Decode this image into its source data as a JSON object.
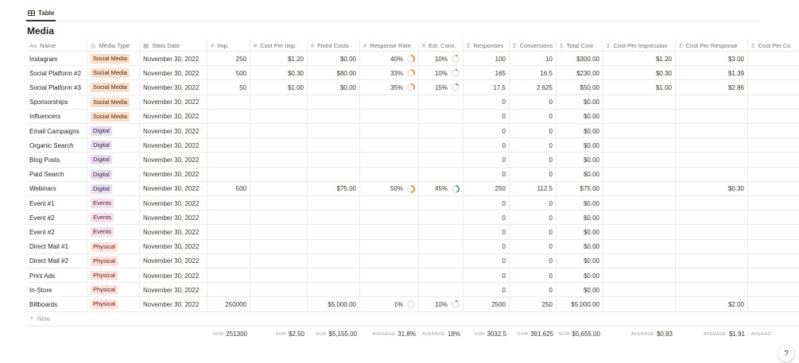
{
  "tab": {
    "label": "Table",
    "icon": "table-icon"
  },
  "database_title": "Media",
  "columns": [
    {
      "label": "Name",
      "icon": "Aa"
    },
    {
      "label": "Media Type",
      "icon": "◎"
    },
    {
      "label": "Stats Date",
      "icon": "▦"
    },
    {
      "label": "Imp.",
      "icon": "#"
    },
    {
      "label": "Cost Per Imp.",
      "icon": "#"
    },
    {
      "label": "Fixed Costs",
      "icon": "#"
    },
    {
      "label": "Response Rate",
      "icon": "#"
    },
    {
      "label": "Est. Conv.",
      "icon": "#"
    },
    {
      "label": "Responses",
      "icon": "Σ"
    },
    {
      "label": "Conversions",
      "icon": "Σ"
    },
    {
      "label": "Total Cost",
      "icon": "Σ"
    },
    {
      "label": "Cost Per Impression",
      "icon": "Σ"
    },
    {
      "label": "Cost Per Response",
      "icon": "Σ"
    },
    {
      "label": "Cost Per Co",
      "icon": "Σ"
    }
  ],
  "tag_colors": {
    "Social Media": {
      "bg": "#fadec9",
      "fg": "#49290e"
    },
    "Digital": {
      "bg": "#e8deee",
      "fg": "#412454"
    },
    "Events": {
      "bg": "#f5e0e9",
      "fg": "#4c2337"
    },
    "Physical": {
      "bg": "#ffe2dd",
      "fg": "#5d1715"
    }
  },
  "ring_colors": {
    "response": "#d9730d",
    "conversion": "#448361",
    "track": "#e3e2e0"
  },
  "rows": [
    {
      "name": "Instagram",
      "media_type": "Social Media",
      "stats_date": "November 30, 2022",
      "imp": "250",
      "cost_per_imp": "$1.20",
      "fixed_costs": "$0.00",
      "response_rate": "40%",
      "response_rate_value": 0.4,
      "est_conv": "10%",
      "est_conv_value": 0.1,
      "responses": "100",
      "conversions": "10",
      "total_cost": "$300.00",
      "cost_per_impression": "$1.20",
      "cost_per_response": "$3.00",
      "cost_per_conversion": ""
    },
    {
      "name": "Social Platform #2",
      "media_type": "Social Media",
      "stats_date": "November 30, 2022",
      "imp": "500",
      "cost_per_imp": "$0.30",
      "fixed_costs": "$80.00",
      "response_rate": "33%",
      "response_rate_value": 0.33,
      "est_conv": "10%",
      "est_conv_value": 0.1,
      "responses": "165",
      "conversions": "16.5",
      "total_cost": "$230.00",
      "cost_per_impression": "$0.30",
      "cost_per_response": "$1.39",
      "cost_per_conversion": ""
    },
    {
      "name": "Social Platform #3",
      "media_type": "Social Media",
      "stats_date": "November 30, 2022",
      "imp": "50",
      "cost_per_imp": "$1.00",
      "fixed_costs": "$0.00",
      "response_rate": "35%",
      "response_rate_value": 0.35,
      "est_conv": "15%",
      "est_conv_value": 0.15,
      "responses": "17.5",
      "conversions": "2.625",
      "total_cost": "$50.00",
      "cost_per_impression": "$1.00",
      "cost_per_response": "$2.86",
      "cost_per_conversion": ""
    },
    {
      "name": "Sponsorships",
      "media_type": "Social Media",
      "stats_date": "November 30, 2022",
      "imp": "",
      "cost_per_imp": "",
      "fixed_costs": "",
      "response_rate": "",
      "response_rate_value": null,
      "est_conv": "",
      "est_conv_value": null,
      "responses": "0",
      "conversions": "0",
      "total_cost": "$0.00",
      "cost_per_impression": "",
      "cost_per_response": "",
      "cost_per_conversion": ""
    },
    {
      "name": "Influencers",
      "media_type": "Social Media",
      "stats_date": "November 30, 2022",
      "imp": "",
      "cost_per_imp": "",
      "fixed_costs": "",
      "response_rate": "",
      "response_rate_value": null,
      "est_conv": "",
      "est_conv_value": null,
      "responses": "0",
      "conversions": "0",
      "total_cost": "$0.00",
      "cost_per_impression": "",
      "cost_per_response": "",
      "cost_per_conversion": ""
    },
    {
      "name": "Email Campaigns",
      "media_type": "Digital",
      "stats_date": "November 30, 2022",
      "imp": "",
      "cost_per_imp": "",
      "fixed_costs": "",
      "response_rate": "",
      "response_rate_value": null,
      "est_conv": "",
      "est_conv_value": null,
      "responses": "0",
      "conversions": "0",
      "total_cost": "$0.00",
      "cost_per_impression": "",
      "cost_per_response": "",
      "cost_per_conversion": ""
    },
    {
      "name": "Organic Search",
      "media_type": "Digital",
      "stats_date": "November 30, 2022",
      "imp": "",
      "cost_per_imp": "",
      "fixed_costs": "",
      "response_rate": "",
      "response_rate_value": null,
      "est_conv": "",
      "est_conv_value": null,
      "responses": "0",
      "conversions": "0",
      "total_cost": "$0.00",
      "cost_per_impression": "",
      "cost_per_response": "",
      "cost_per_conversion": ""
    },
    {
      "name": "Blog Posts",
      "media_type": "Digital",
      "stats_date": "November 30, 2022",
      "imp": "",
      "cost_per_imp": "",
      "fixed_costs": "",
      "response_rate": "",
      "response_rate_value": null,
      "est_conv": "",
      "est_conv_value": null,
      "responses": "0",
      "conversions": "0",
      "total_cost": "$0.00",
      "cost_per_impression": "",
      "cost_per_response": "",
      "cost_per_conversion": ""
    },
    {
      "name": "Paid Search",
      "media_type": "Digital",
      "stats_date": "November 30, 2022",
      "imp": "",
      "cost_per_imp": "",
      "fixed_costs": "",
      "response_rate": "",
      "response_rate_value": null,
      "est_conv": "",
      "est_conv_value": null,
      "responses": "0",
      "conversions": "0",
      "total_cost": "$0.00",
      "cost_per_impression": "",
      "cost_per_response": "",
      "cost_per_conversion": ""
    },
    {
      "name": "Webinars",
      "media_type": "Digital",
      "stats_date": "November 30, 2022",
      "imp": "500",
      "cost_per_imp": "",
      "fixed_costs": "$75.00",
      "response_rate": "50%",
      "response_rate_value": 0.5,
      "est_conv": "45%",
      "est_conv_value": 0.45,
      "responses": "250",
      "conversions": "112.5",
      "total_cost": "$75.00",
      "cost_per_impression": "",
      "cost_per_response": "$0.30",
      "cost_per_conversion": ""
    },
    {
      "name": "Event #1",
      "media_type": "Events",
      "stats_date": "November 30, 2022",
      "imp": "",
      "cost_per_imp": "",
      "fixed_costs": "",
      "response_rate": "",
      "response_rate_value": null,
      "est_conv": "",
      "est_conv_value": null,
      "responses": "0",
      "conversions": "0",
      "total_cost": "$0.00",
      "cost_per_impression": "",
      "cost_per_response": "",
      "cost_per_conversion": ""
    },
    {
      "name": "Event #2",
      "media_type": "Events",
      "stats_date": "November 30, 2022",
      "imp": "",
      "cost_per_imp": "",
      "fixed_costs": "",
      "response_rate": "",
      "response_rate_value": null,
      "est_conv": "",
      "est_conv_value": null,
      "responses": "0",
      "conversions": "0",
      "total_cost": "$0.00",
      "cost_per_impression": "",
      "cost_per_response": "",
      "cost_per_conversion": ""
    },
    {
      "name": "Event #2",
      "media_type": "Events",
      "stats_date": "November 30, 2022",
      "imp": "",
      "cost_per_imp": "",
      "fixed_costs": "",
      "response_rate": "",
      "response_rate_value": null,
      "est_conv": "",
      "est_conv_value": null,
      "responses": "0",
      "conversions": "0",
      "total_cost": "$0.00",
      "cost_per_impression": "",
      "cost_per_response": "",
      "cost_per_conversion": ""
    },
    {
      "name": "Direct Mail #1",
      "media_type": "Physical",
      "stats_date": "November 30, 2022",
      "imp": "",
      "cost_per_imp": "",
      "fixed_costs": "",
      "response_rate": "",
      "response_rate_value": null,
      "est_conv": "",
      "est_conv_value": null,
      "responses": "0",
      "conversions": "0",
      "total_cost": "$0.00",
      "cost_per_impression": "",
      "cost_per_response": "",
      "cost_per_conversion": ""
    },
    {
      "name": "Direct Mail #2",
      "media_type": "Physical",
      "stats_date": "November 30, 2022",
      "imp": "",
      "cost_per_imp": "",
      "fixed_costs": "",
      "response_rate": "",
      "response_rate_value": null,
      "est_conv": "",
      "est_conv_value": null,
      "responses": "0",
      "conversions": "0",
      "total_cost": "$0.00",
      "cost_per_impression": "",
      "cost_per_response": "",
      "cost_per_conversion": ""
    },
    {
      "name": "Print Ads",
      "media_type": "Physical",
      "stats_date": "November 30, 2022",
      "imp": "",
      "cost_per_imp": "",
      "fixed_costs": "",
      "response_rate": "",
      "response_rate_value": null,
      "est_conv": "",
      "est_conv_value": null,
      "responses": "0",
      "conversions": "0",
      "total_cost": "$0.00",
      "cost_per_impression": "",
      "cost_per_response": "",
      "cost_per_conversion": ""
    },
    {
      "name": "In-Store",
      "media_type": "Physical",
      "stats_date": "November 30, 2022",
      "imp": "",
      "cost_per_imp": "",
      "fixed_costs": "",
      "response_rate": "",
      "response_rate_value": null,
      "est_conv": "",
      "est_conv_value": null,
      "responses": "0",
      "conversions": "0",
      "total_cost": "$0.00",
      "cost_per_impression": "",
      "cost_per_response": "",
      "cost_per_conversion": ""
    },
    {
      "name": "Billboards",
      "media_type": "Physical",
      "stats_date": "November 30, 2022",
      "imp": "250000",
      "cost_per_imp": "",
      "fixed_costs": "$5,000.00",
      "response_rate": "1%",
      "response_rate_value": 0.01,
      "est_conv": "10%",
      "est_conv_value": 0.1,
      "responses": "2500",
      "conversions": "250",
      "total_cost": "$5,000.00",
      "cost_per_impression": "",
      "cost_per_response": "$2.00",
      "cost_per_conversion": ""
    }
  ],
  "new_row_label": "New",
  "summary": [
    {
      "label": "",
      "value": ""
    },
    {
      "label": "",
      "value": ""
    },
    {
      "label": "",
      "value": ""
    },
    {
      "label": "SUM",
      "value": "251300"
    },
    {
      "label": "SUM",
      "value": "$2.50"
    },
    {
      "label": "SUM",
      "value": "$5,155.00"
    },
    {
      "label": "AVERAGE",
      "value": "31.8%"
    },
    {
      "label": "AVERAGE",
      "value": "18%"
    },
    {
      "label": "SUM",
      "value": "3032.5"
    },
    {
      "label": "SUM",
      "value": "391.625"
    },
    {
      "label": "SUM",
      "value": "$5,655.00"
    },
    {
      "label": "AVERAGE",
      "value": "$0.83"
    },
    {
      "label": "AVERAGE",
      "value": "$1.91"
    },
    {
      "label": "AVERAG",
      "value": ""
    }
  ],
  "help_label": "?"
}
